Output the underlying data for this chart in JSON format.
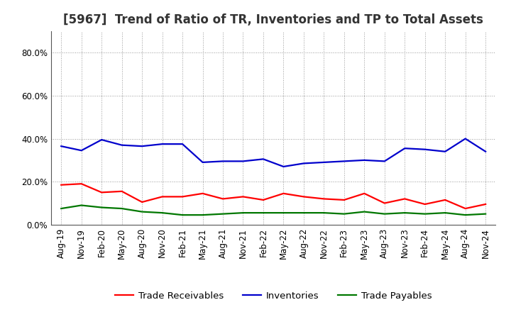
{
  "title": "[5967]  Trend of Ratio of TR, Inventories and TP to Total Assets",
  "ylim": [
    0.0,
    0.9
  ],
  "yticks": [
    0.0,
    0.2,
    0.4,
    0.6,
    0.8
  ],
  "x_labels": [
    "Aug-19",
    "Nov-19",
    "Feb-20",
    "May-20",
    "Aug-20",
    "Nov-20",
    "Feb-21",
    "May-21",
    "Aug-21",
    "Nov-21",
    "Feb-22",
    "May-22",
    "Aug-22",
    "Nov-22",
    "Feb-23",
    "May-23",
    "Aug-23",
    "Nov-23",
    "Feb-24",
    "May-24",
    "Aug-24",
    "Nov-24"
  ],
  "trade_receivables": [
    0.185,
    0.19,
    0.15,
    0.155,
    0.105,
    0.13,
    0.13,
    0.145,
    0.12,
    0.13,
    0.115,
    0.145,
    0.13,
    0.12,
    0.115,
    0.145,
    0.1,
    0.12,
    0.095,
    0.115,
    0.075,
    0.095
  ],
  "inventories": [
    0.365,
    0.345,
    0.395,
    0.37,
    0.365,
    0.375,
    0.375,
    0.29,
    0.295,
    0.295,
    0.305,
    0.27,
    0.285,
    0.29,
    0.295,
    0.3,
    0.295,
    0.355,
    0.35,
    0.34,
    0.4,
    0.34
  ],
  "trade_payables": [
    0.075,
    0.09,
    0.08,
    0.075,
    0.06,
    0.055,
    0.045,
    0.045,
    0.05,
    0.055,
    0.055,
    0.055,
    0.055,
    0.055,
    0.05,
    0.06,
    0.05,
    0.055,
    0.05,
    0.055,
    0.045,
    0.05
  ],
  "tr_color": "#ff0000",
  "inv_color": "#0000cc",
  "tp_color": "#007700",
  "tr_label": "Trade Receivables",
  "inv_label": "Inventories",
  "tp_label": "Trade Payables",
  "background_color": "#ffffff",
  "plot_bg_color": "#ffffff",
  "grid_color": "#999999",
  "title_fontsize": 12,
  "legend_fontsize": 9.5,
  "tick_fontsize": 8.5,
  "line_width": 1.6
}
